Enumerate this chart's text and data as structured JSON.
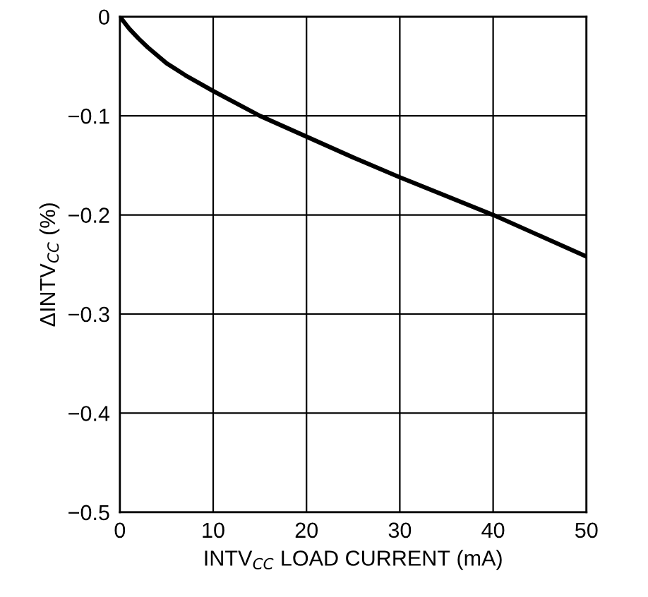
{
  "chart_data": {
    "type": "line",
    "xlabel": "INTV$_{CC}$ LOAD CURRENT (mA)",
    "ylabel": "ΔINTV$_{CC}$ (%)",
    "x": [
      0,
      1,
      2,
      3,
      5,
      7,
      10,
      15,
      20,
      25,
      30,
      35,
      40,
      45,
      50
    ],
    "series": [
      {
        "color": "#000000",
        "values": [
          0,
          -0.012,
          -0.022,
          -0.031,
          -0.047,
          -0.059,
          -0.075,
          -0.1,
          -0.121,
          -0.142,
          -0.162,
          -0.181,
          -0.2,
          -0.221,
          -0.242
        ]
      }
    ],
    "xlim": [
      0,
      50
    ],
    "xticks": [
      0,
      10,
      20,
      30,
      40,
      50
    ],
    "ylim": [
      -0.5,
      0
    ],
    "yticks": [
      {
        "value": -0.5,
        "label": "−0.5"
      },
      {
        "value": -0.4,
        "label": "−0.4"
      },
      {
        "value": -0.3,
        "label": "−0.3"
      },
      {
        "value": -0.2,
        "label": "−0.2"
      },
      {
        "value": -0.1,
        "label": "−0.1"
      },
      0
    ],
    "grid": true,
    "line_style": "solid",
    "marker": "none",
    "legend": false
  }
}
